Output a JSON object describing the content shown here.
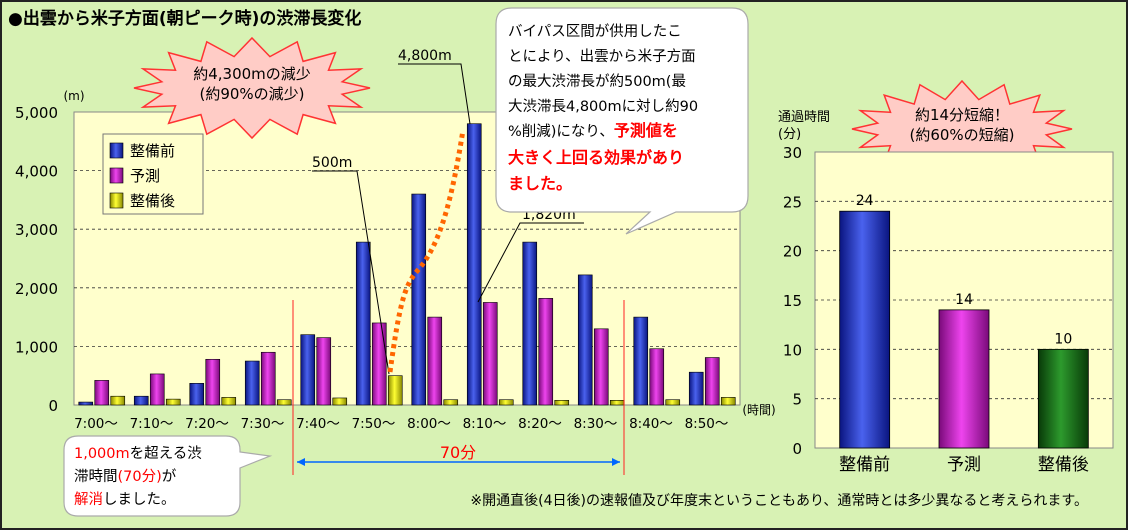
{
  "title": "●出雲から米子方面(朝ピーク時)の渋滞長変化",
  "colors": {
    "panel_bg": "#d8f2b4",
    "plot_bg": "#ffffcc",
    "before": "#2233bb",
    "forecast": "#cc22cc",
    "after": "#dddd00",
    "after_right": "#116611",
    "arrow": "#ff6600",
    "red_text": "#ff0000",
    "range_blue": "#0066ff"
  },
  "chart_data": [
    {
      "type": "bar",
      "yunit": "(m)",
      "xunit": "(時間)",
      "ylim": [
        0,
        5000
      ],
      "yticks": [
        "5,000",
        "4,000",
        "3,000",
        "2,000",
        "1,000",
        "0"
      ],
      "categories": [
        "7:00〜",
        "7:10〜",
        "7:20〜",
        "7:30〜",
        "7:40〜",
        "7:50〜",
        "8:00〜",
        "8:10〜",
        "8:20〜",
        "8:30〜",
        "8:40〜",
        "8:50〜"
      ],
      "series": [
        {
          "name": "整備前",
          "values": [
            50,
            150,
            370,
            750,
            1200,
            2780,
            3600,
            4800,
            2780,
            2220,
            1500,
            560
          ]
        },
        {
          "name": "予測",
          "values": [
            420,
            530,
            780,
            900,
            1150,
            1400,
            1500,
            1750,
            1820,
            1300,
            960,
            810
          ]
        },
        {
          "name": "整備後",
          "values": [
            150,
            100,
            130,
            90,
            120,
            500,
            90,
            90,
            80,
            80,
            90,
            130
          ]
        }
      ],
      "grid": true,
      "legend": "top-left",
      "annotations": {
        "callout_4800": "4,800m",
        "callout_500": "500m",
        "callout_1820": "1,820m",
        "range": "70分"
      }
    },
    {
      "type": "bar",
      "ylabel_line1": "通過時間",
      "ylabel_line2": "(分)",
      "ylim": [
        0,
        30
      ],
      "yticks": [
        "30",
        "25",
        "20",
        "15",
        "10",
        "5",
        "0"
      ],
      "categories": [
        "整備前",
        "予測",
        "整備後"
      ],
      "values": [
        24,
        14,
        10
      ],
      "labels": [
        "24",
        "14",
        "10"
      ],
      "grid": true
    }
  ],
  "bubbles": {
    "reduction": {
      "line1": "約4,300mの減少",
      "line2": "(約90%の減少)"
    },
    "shorten": {
      "line1": "約14分短縮！",
      "line2": "(約60%の短縮)"
    },
    "speech": {
      "l1": "バイパス区間が供用したこ",
      "l2": "とにより、出雲から米子方面",
      "l3": "の最大渋滞長が約500m(最",
      "l4": "大渋滞長4,800mに対し約90",
      "l5a": "%削減)になり、",
      "l5b": "予測値を",
      "l6": "大きく上回る効果があり",
      "l7": "ました。"
    },
    "resolve": {
      "l1a": "1,000m",
      "l1b": "を超える渋",
      "l2a": "滞時間",
      "l2b": "(70分)",
      "l2c": "が",
      "l3a": "解消",
      "l3b": "しました。"
    }
  },
  "footnote": "※開通直後(4日後)の速報値及び年度末ということもあり、通常時とは多少異なると考えられます。"
}
